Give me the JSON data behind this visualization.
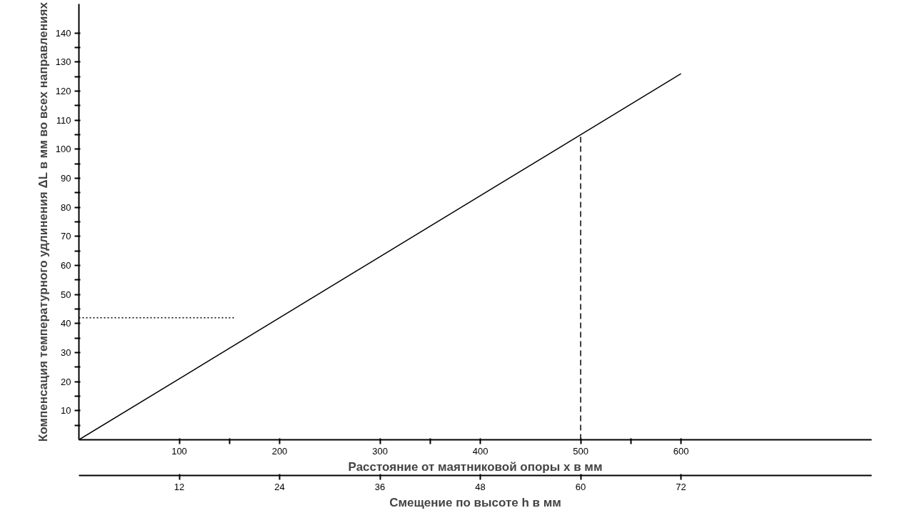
{
  "chart_data": {
    "type": "line",
    "xlabel": "Расстояние от маятниковой опоры x в мм",
    "x2label": "Смещение по высоте h в мм",
    "ylabel": "Компенсация температурного удлинения ΔL в мм во всех направлениях",
    "series": [
      {
        "color": "#000000",
        "x": [
          0,
          600
        ],
        "values": [
          0,
          126
        ],
        "line_style": "solid"
      },
      {
        "color": "#000000",
        "x": [
          500,
          500
        ],
        "values": [
          0,
          105
        ],
        "line_style": "dashed"
      },
      {
        "color": "#000000",
        "x": [
          0,
          155
        ],
        "values": [
          42,
          42
        ],
        "line_style": "dotted"
      }
    ],
    "xlim": [
      0,
      790
    ],
    "ylim": [
      0,
      150
    ],
    "x2lim": [
      0,
      94.8
    ],
    "xticks": [
      100,
      {
        "value": 150,
        "label": null
      },
      200,
      300,
      {
        "value": 350,
        "label": null
      },
      400,
      500,
      {
        "value": 550,
        "label": null
      },
      600
    ],
    "x2ticks": [
      12,
      24,
      36,
      48,
      60,
      72
    ],
    "yticks": [
      {
        "value": 5,
        "label": null
      },
      10,
      {
        "value": 15,
        "label": null
      },
      20,
      {
        "value": 25,
        "label": null
      },
      30,
      {
        "value": 35,
        "label": null
      },
      40,
      {
        "value": 45,
        "label": null
      },
      50,
      {
        "value": 55,
        "label": null
      },
      60,
      {
        "value": 65,
        "label": null
      },
      70,
      {
        "value": 75,
        "label": null
      },
      80,
      {
        "value": 85,
        "label": null
      },
      90,
      {
        "value": 95,
        "label": null
      },
      100,
      {
        "value": 105,
        "label": null
      },
      110,
      {
        "value": 115,
        "label": null
      },
      120,
      {
        "value": 125,
        "label": null
      },
      130,
      {
        "value": 135,
        "label": null
      },
      140
    ],
    "grid": false,
    "marker": "none"
  }
}
